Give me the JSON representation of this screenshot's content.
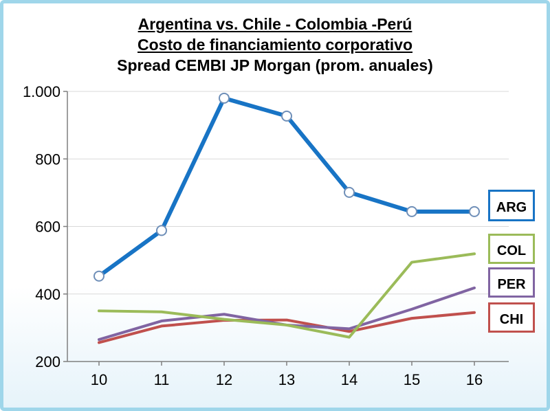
{
  "titles": {
    "line1": "Argentina vs. Chile - Colombia -Perú",
    "line2": "Costo de financiamiento corporativo",
    "line3": "Spread CEMBI JP Morgan (prom. anuales)"
  },
  "chart_data": {
    "type": "line",
    "title": "Argentina vs. Chile - Colombia -Perú",
    "subtitle": "Costo de financiamiento corporativo / Spread CEMBI JP Morgan (prom. anuales)",
    "xlabel": "",
    "ylabel": "",
    "categories": [
      "10",
      "11",
      "12",
      "13",
      "14",
      "15",
      "16"
    ],
    "ylim": [
      200,
      1000
    ],
    "yticks": [
      200,
      400,
      600,
      800,
      1000
    ],
    "ytick_labels": [
      "200",
      "400",
      "600",
      "800",
      "1.000"
    ],
    "grid": true,
    "legend_placement": "right",
    "series": [
      {
        "name": "ARG",
        "color": "#1874c5",
        "markers": true,
        "values": [
          453,
          588,
          980,
          927,
          701,
          644,
          644
        ]
      },
      {
        "name": "COL",
        "color": "#9bbb59",
        "markers": false,
        "values": [
          350,
          347,
          325,
          308,
          272,
          494,
          519
        ]
      },
      {
        "name": "PER",
        "color": "#8064a2",
        "markers": false,
        "values": [
          265,
          320,
          340,
          308,
          297,
          355,
          418
        ]
      },
      {
        "name": "CHI",
        "color": "#c0504d",
        "markers": false,
        "values": [
          256,
          305,
          322,
          323,
          289,
          328,
          345
        ]
      }
    ]
  }
}
